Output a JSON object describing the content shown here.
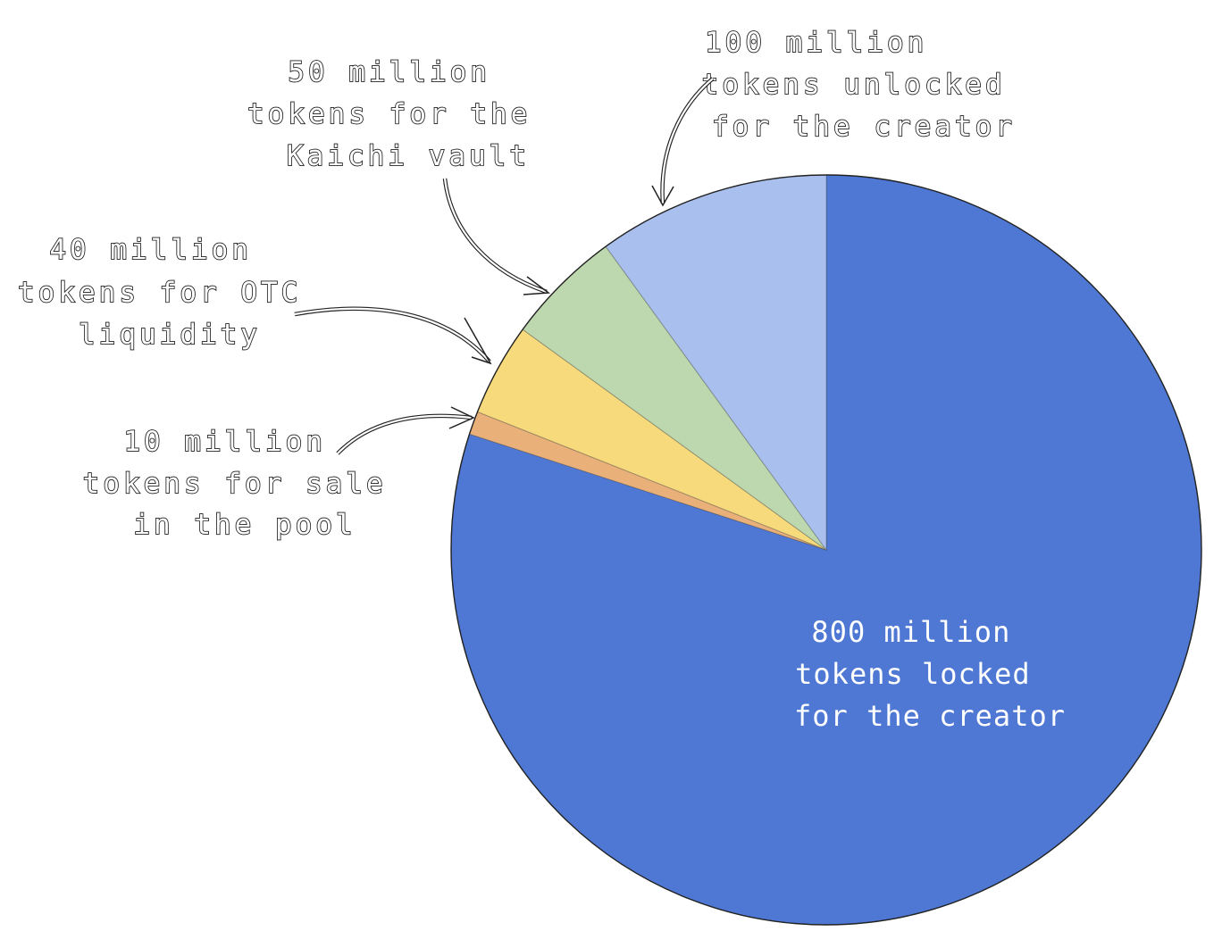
{
  "chart_data": {
    "type": "pie",
    "start": "12 o'clock, clockwise",
    "slices": [
      {
        "label": "800 million tokens locked for the creator",
        "value": 800,
        "color": "#4e78d3",
        "label_lines": [
          "800 million",
          "tokens locked",
          "for the creator"
        ]
      },
      {
        "label": "10 million tokens for sale in the pool",
        "value": 10,
        "color": "#e9b07a",
        "label_lines": [
          "10 million",
          "tokens for sale",
          "in the pool"
        ]
      },
      {
        "label": "40 million tokens for OTC liquidity",
        "value": 40,
        "color": "#f7da7c",
        "label_lines": [
          "40 million",
          "tokens for OTC",
          "liquidity"
        ]
      },
      {
        "label": "50 million tokens for the Kaichi vault",
        "value": 50,
        "color": "#bdd7ae",
        "label_lines": [
          "50 million",
          "tokens for the",
          "Kaichi vault"
        ]
      },
      {
        "label": "100 million tokens unlocked for the creator",
        "value": 100,
        "color": "#a9c0ee",
        "label_lines": [
          "100 million",
          "tokens unlocked",
          "for the creator"
        ]
      }
    ]
  }
}
